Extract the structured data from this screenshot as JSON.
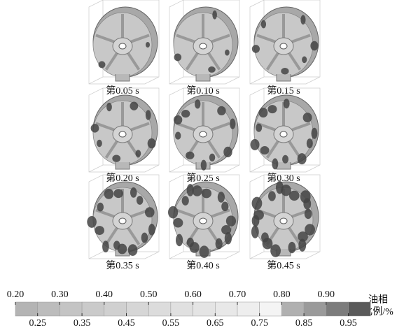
{
  "panels": [
    {
      "caption": "第0.05 s"
    },
    {
      "caption": "第0.10 s"
    },
    {
      "caption": "第0.15 s"
    },
    {
      "caption": "第0.20 s"
    },
    {
      "caption": "第0.25 s"
    },
    {
      "caption": "第0.30 s"
    },
    {
      "caption": "第0.35 s"
    },
    {
      "caption": "第0.40 s"
    },
    {
      "caption": "第0.45 s"
    }
  ],
  "colorbar": {
    "label_lines": [
      "油相",
      "比例/%"
    ],
    "top_ticks": [
      {
        "value": 0.2,
        "label": "0.20"
      },
      {
        "value": 0.3,
        "label": "0.30"
      },
      {
        "value": 0.4,
        "label": "0.40"
      },
      {
        "value": 0.5,
        "label": "0.50"
      },
      {
        "value": 0.6,
        "label": "0.60"
      },
      {
        "value": 0.7,
        "label": "0.70"
      },
      {
        "value": 0.8,
        "label": "0.80"
      },
      {
        "value": 0.9,
        "label": "0.90"
      }
    ],
    "bottom_ticks": [
      {
        "value": 0.25,
        "label": "0.25"
      },
      {
        "value": 0.35,
        "label": "0.35"
      },
      {
        "value": 0.45,
        "label": "0.45"
      },
      {
        "value": 0.55,
        "label": "0.55"
      },
      {
        "value": 0.65,
        "label": "0.65"
      },
      {
        "value": 0.75,
        "label": "0.75"
      },
      {
        "value": 0.85,
        "label": "0.85"
      },
      {
        "value": 0.95,
        "label": "0.95"
      }
    ],
    "colors": [
      "#b4b4b4",
      "#bcbcbc",
      "#c4c4c4",
      "#cacaca",
      "#d0d0d0",
      "#d6d6d6",
      "#dcdcdc",
      "#e0e0e0",
      "#e4e4e4",
      "#e8e8e8",
      "#eeeeee",
      "#f4f4f4",
      "#b0b0b0",
      "#9a9a9a",
      "#7c7c7c",
      "#5a5a5a"
    ]
  }
}
